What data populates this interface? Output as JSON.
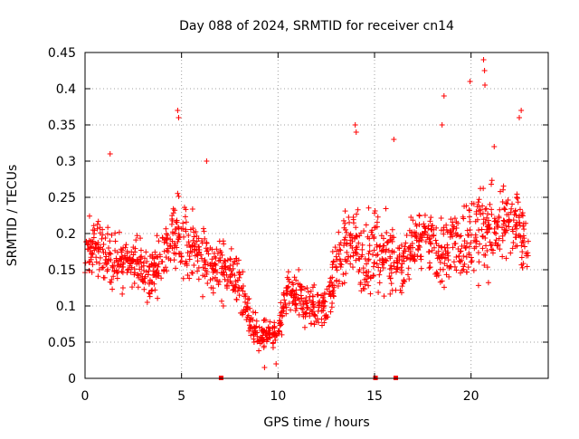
{
  "chart_data": {
    "type": "scatter",
    "title": "Day 088 of 2024, SRMTID for receiver cn14",
    "xlabel": "GPS time / hours",
    "ylabel": "SRMTID / TECUs",
    "xlim": [
      0,
      24
    ],
    "ylim": [
      0,
      0.45
    ],
    "grid": true,
    "marker": "plus",
    "color": "#ff0000",
    "x_ticks": [
      0,
      5,
      10,
      15,
      20
    ],
    "x_tick_labels": [
      "0",
      "5",
      "10",
      "15",
      "20"
    ],
    "y_ticks": [
      0,
      0.05,
      0.1,
      0.15,
      0.2,
      0.25,
      0.3,
      0.35,
      0.4,
      0.45
    ],
    "y_tick_labels": [
      "0",
      "0.05",
      "0.1",
      "0.15",
      "0.2",
      "0.25",
      "0.3",
      "0.35",
      "0.4",
      "0.45"
    ],
    "envelope_hours": [
      0,
      0.5,
      1,
      1.5,
      2,
      2.5,
      3,
      3.5,
      4,
      4.5,
      5,
      5.5,
      6,
      6.5,
      7,
      7.5,
      8,
      8.5,
      9,
      9.5,
      10,
      10.5,
      11,
      11.5,
      12,
      12.5,
      13,
      13.5,
      14,
      14.5,
      15,
      15.5,
      16,
      16.5,
      17,
      17.5,
      18,
      18.5,
      19,
      19.5,
      20,
      20.5,
      21,
      21.5,
      22,
      22.5,
      23
    ],
    "envelope_median": [
      0.17,
      0.19,
      0.17,
      0.16,
      0.16,
      0.16,
      0.15,
      0.14,
      0.17,
      0.19,
      0.2,
      0.18,
      0.17,
      0.16,
      0.15,
      0.15,
      0.13,
      0.08,
      0.06,
      0.06,
      0.06,
      0.12,
      0.11,
      0.1,
      0.1,
      0.1,
      0.15,
      0.18,
      0.19,
      0.16,
      0.18,
      0.17,
      0.17,
      0.15,
      0.19,
      0.19,
      0.19,
      0.17,
      0.19,
      0.18,
      0.2,
      0.2,
      0.21,
      0.21,
      0.22,
      0.21,
      0.19
    ],
    "envelope_spread": [
      0.05,
      0.05,
      0.05,
      0.05,
      0.04,
      0.04,
      0.05,
      0.05,
      0.05,
      0.06,
      0.07,
      0.06,
      0.05,
      0.05,
      0.05,
      0.05,
      0.05,
      0.03,
      0.025,
      0.025,
      0.025,
      0.04,
      0.04,
      0.04,
      0.04,
      0.04,
      0.05,
      0.06,
      0.07,
      0.06,
      0.06,
      0.06,
      0.06,
      0.05,
      0.05,
      0.05,
      0.06,
      0.07,
      0.06,
      0.06,
      0.07,
      0.08,
      0.07,
      0.06,
      0.06,
      0.06,
      0.05
    ],
    "peak_points": [
      {
        "x": 4.8,
        "y": 0.37
      },
      {
        "x": 4.85,
        "y": 0.36
      },
      {
        "x": 6.3,
        "y": 0.3
      },
      {
        "x": 1.3,
        "y": 0.31
      },
      {
        "x": 14.0,
        "y": 0.35
      },
      {
        "x": 14.05,
        "y": 0.34
      },
      {
        "x": 16.0,
        "y": 0.33
      },
      {
        "x": 18.6,
        "y": 0.39
      },
      {
        "x": 18.5,
        "y": 0.35
      },
      {
        "x": 19.95,
        "y": 0.41
      },
      {
        "x": 20.65,
        "y": 0.44
      },
      {
        "x": 20.7,
        "y": 0.425
      },
      {
        "x": 20.72,
        "y": 0.405
      },
      {
        "x": 22.5,
        "y": 0.36
      },
      {
        "x": 22.6,
        "y": 0.37
      },
      {
        "x": 21.2,
        "y": 0.32
      },
      {
        "x": 9.3,
        "y": 0.015
      },
      {
        "x": 9.9,
        "y": 0.02
      },
      {
        "x": 8.5,
        "y": 0.11
      }
    ],
    "zero_points": [
      {
        "x": 7.05,
        "y": 0
      },
      {
        "x": 15.05,
        "y": 0
      },
      {
        "x": 16.1,
        "y": 0
      }
    ]
  }
}
